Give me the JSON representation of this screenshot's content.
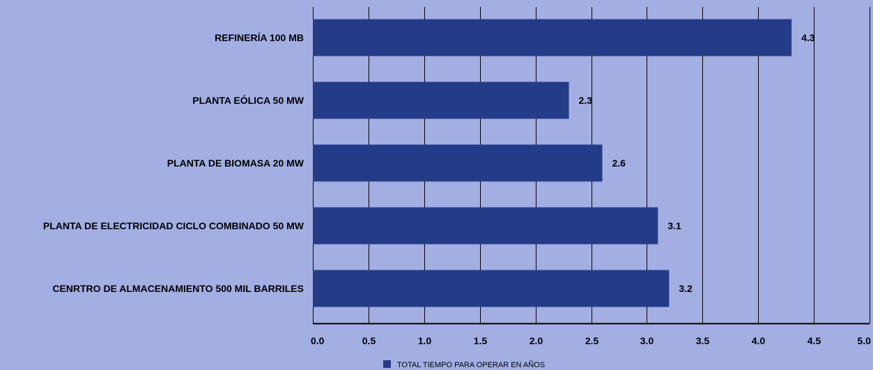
{
  "colors": {
    "background": "#a3aee3",
    "bar": "#243c88",
    "grid": "#000000",
    "text": "#000000"
  },
  "chart_data": {
    "type": "bar",
    "orientation": "horizontal",
    "categories": [
      "REFINERÍA 100 MB",
      "PLANTA EÓLICA 50 MW",
      "PLANTA DE BIOMASA 20 MW",
      "PLANTA DE ELECTRICIDAD CICLO COMBINADO 50 MW",
      "CENRTRO DE ALMACENAMIENTO 500 MIL BARRILES"
    ],
    "series": [
      {
        "name": "TOTAL TIEMPO PARA OPERAR EN AÑOS",
        "values": [
          4.3,
          2.3,
          2.6,
          3.1,
          3.2
        ],
        "data_labels": [
          "4.3",
          "2.3",
          "2.6",
          "3.1",
          "3.2"
        ]
      }
    ],
    "xlim": [
      0,
      5.0
    ],
    "x_ticks": [
      "0.0",
      "0.5",
      "1.0",
      "1.5",
      "2.0",
      "2.5",
      "3.0",
      "3.5",
      "4.0",
      "4.5",
      "5.0"
    ],
    "grid": "vertical",
    "legend": "bottom-center"
  }
}
